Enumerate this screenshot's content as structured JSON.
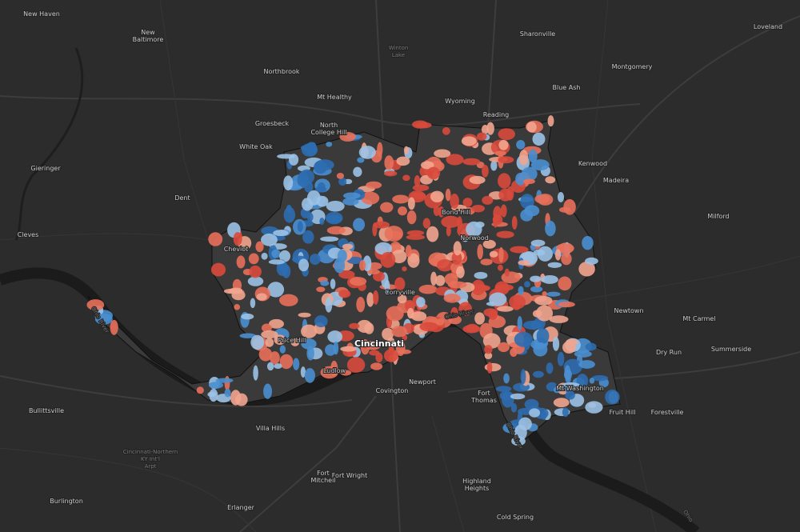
{
  "labels": [
    {
      "lines": [
        "New Haven"
      ]
    },
    {
      "lines": [
        "New",
        "Baltimore"
      ]
    },
    {
      "lines": [
        "Northbrook"
      ]
    },
    {
      "lines": [
        "Mt Healthy"
      ]
    },
    {
      "lines": [
        "Wyoming"
      ]
    },
    {
      "lines": [
        "Sharonville"
      ]
    },
    {
      "lines": [
        "Montgomery"
      ]
    },
    {
      "lines": [
        "Blue Ash"
      ]
    },
    {
      "lines": [
        "Reading"
      ]
    },
    {
      "lines": [
        "Loveland"
      ]
    },
    {
      "lines": [
        "Groesbeck"
      ]
    },
    {
      "lines": [
        "North",
        "College Hill"
      ]
    },
    {
      "lines": [
        "White Oak"
      ]
    },
    {
      "lines": [
        "Gieringer"
      ]
    },
    {
      "lines": [
        "Dent"
      ]
    },
    {
      "lines": [
        "Cleves"
      ]
    },
    {
      "lines": [
        "Kenwood"
      ]
    },
    {
      "lines": [
        "Madeira"
      ]
    },
    {
      "lines": [
        "Milford"
      ]
    },
    {
      "lines": [
        "Newtown"
      ]
    },
    {
      "lines": [
        "Mt Carmel"
      ]
    },
    {
      "lines": [
        "Dry Run"
      ]
    },
    {
      "lines": [
        "Summerside"
      ]
    },
    {
      "lines": [
        "Ludlow"
      ]
    },
    {
      "lines": [
        "Covington"
      ]
    },
    {
      "lines": [
        "Newport"
      ]
    },
    {
      "lines": [
        "Fort",
        "Thomas"
      ]
    },
    {
      "lines": [
        "Bullittsville"
      ]
    },
    {
      "lines": [
        "Villa Hills"
      ]
    },
    {
      "lines": [
        "Fort",
        "Mitchell"
      ]
    },
    {
      "lines": [
        "Fort Wright"
      ]
    },
    {
      "lines": [
        "Highland",
        "Heights"
      ]
    },
    {
      "lines": [
        "Burlington"
      ]
    },
    {
      "lines": [
        "Erlanger"
      ]
    },
    {
      "lines": [
        "Cold Spring"
      ]
    },
    {
      "lines": [
        "Forestville"
      ]
    },
    {
      "lines": [
        "Fruit Hill"
      ]
    },
    {
      "lines": [
        "Cincinnati-Northern",
        "KY Int'l",
        "Arpt"
      ]
    },
    {
      "lines": [
        "Winton",
        "Lake"
      ]
    },
    {
      "lines": [
        "Cheviot"
      ]
    },
    {
      "lines": [
        "Norwood"
      ]
    },
    {
      "lines": [
        "Bond Hill"
      ]
    },
    {
      "lines": [
        "Price Hill"
      ]
    },
    {
      "lines": [
        "Corryville"
      ]
    },
    {
      "lines": [
        "Cincinnati"
      ]
    },
    {
      "lines": [
        "Mt Washington"
      ]
    },
    {
      "lines": [
        "Ohio River"
      ]
    },
    {
      "lines": [
        "Ohio River"
      ]
    },
    {
      "lines": [
        "Ohio River"
      ]
    },
    {
      "lines": [
        "Ohio"
      ]
    }
  ]
}
